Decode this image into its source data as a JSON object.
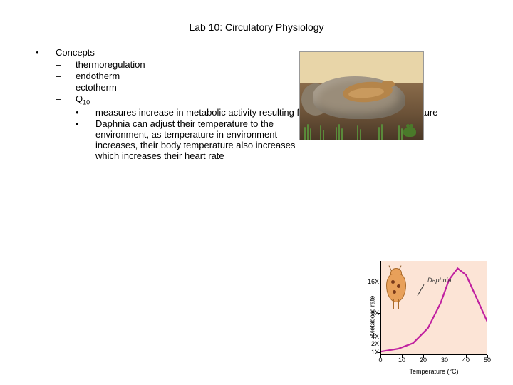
{
  "title": "Lab 10: Circulatory Physiology",
  "bullets": {
    "concepts": "Concepts",
    "thermoregulation": "thermoregulation",
    "endotherm": "endotherm",
    "ectotherm": "ectotherm",
    "q10_label": "Q",
    "q10_sub": "10",
    "q10_sub1": "measures increase in metabolic activity resulting from increase in body temperature",
    "q10_sub2": "Daphnia can adjust their temperature to the environment, as temperature in environment increases, their body temperature also increases which increases their heart rate"
  },
  "illustration": {
    "colors": {
      "sand": "#e8d5a8",
      "rock": "#9a8d7a",
      "snake": "#b5854a",
      "dirt": "#6b5238",
      "grass": "#5a8a3a",
      "frog": "#4a7a2a"
    }
  },
  "chart": {
    "type": "line",
    "title": "",
    "xlabel": "Temperature (°C)",
    "ylabel": "Metabolic rate",
    "pointer_label": "Daphnia",
    "background_color": "#fce4d6",
    "line_color": "#c020a0",
    "line_width": 2.5,
    "daphnia_color": "#e8a05a",
    "xlim": [
      0,
      50
    ],
    "xticks": [
      0,
      10,
      20,
      30,
      40,
      50
    ],
    "yticks": [
      {
        "v": 0.03,
        "label": "1X"
      },
      {
        "v": 0.12,
        "label": "2X"
      },
      {
        "v": 0.2,
        "label": "4X"
      },
      {
        "v": 0.45,
        "label": "8X"
      },
      {
        "v": 0.78,
        "label": "16X"
      }
    ],
    "curve_points": [
      {
        "x": 0,
        "y": 0.03
      },
      {
        "x": 8,
        "y": 0.06
      },
      {
        "x": 15,
        "y": 0.12
      },
      {
        "x": 22,
        "y": 0.28
      },
      {
        "x": 28,
        "y": 0.55
      },
      {
        "x": 32,
        "y": 0.8
      },
      {
        "x": 36,
        "y": 0.92
      },
      {
        "x": 40,
        "y": 0.85
      },
      {
        "x": 45,
        "y": 0.6
      },
      {
        "x": 50,
        "y": 0.35
      }
    ]
  }
}
